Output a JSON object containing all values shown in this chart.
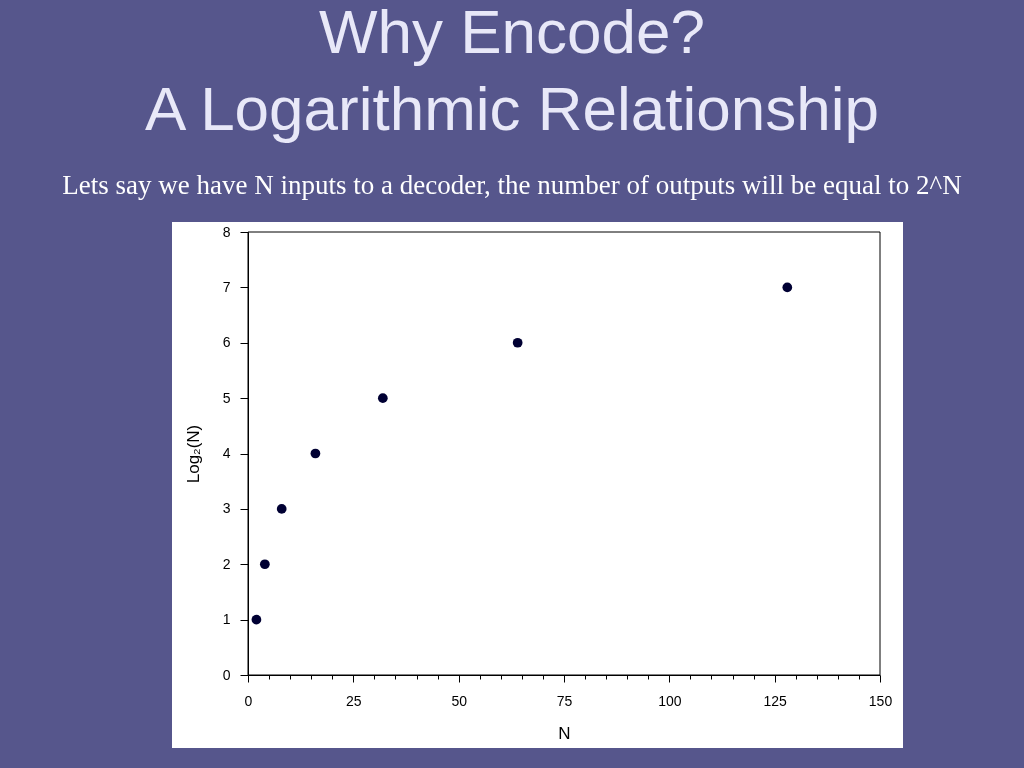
{
  "chart_data": {
    "type": "scatter",
    "title": "Why Encode?\nA Logarithmic Relationship",
    "subtitle": "Lets say we have N inputs to a decoder, the number of outputs will be equal to 2^N",
    "xlabel": "N",
    "ylabel": "Log₂(N)",
    "x": [
      2,
      4,
      8,
      16,
      32,
      64,
      128
    ],
    "series": [
      {
        "color": "#000033",
        "values": [
          1,
          2,
          3,
          4,
          5,
          6,
          7
        ]
      }
    ],
    "xlim": [
      0,
      150
    ],
    "ylim": [
      0,
      8
    ],
    "xticks": [
      0,
      {
        "value": 5,
        "label": null
      },
      {
        "value": 10,
        "label": null
      },
      {
        "value": 15,
        "label": null
      },
      {
        "value": 20,
        "label": null
      },
      25,
      {
        "value": 30,
        "label": null
      },
      {
        "value": 35,
        "label": null
      },
      {
        "value": 40,
        "label": null
      },
      {
        "value": 45,
        "label": null
      },
      50,
      {
        "value": 55,
        "label": null
      },
      {
        "value": 60,
        "label": null
      },
      {
        "value": 65,
        "label": null
      },
      {
        "value": 70,
        "label": null
      },
      75,
      {
        "value": 80,
        "label": null
      },
      {
        "value": 85,
        "label": null
      },
      {
        "value": 90,
        "label": null
      },
      {
        "value": 95,
        "label": null
      },
      100,
      {
        "value": 105,
        "label": null
      },
      {
        "value": 110,
        "label": null
      },
      {
        "value": 115,
        "label": null
      },
      {
        "value": 120,
        "label": null
      },
      125,
      {
        "value": 130,
        "label": null
      },
      {
        "value": 135,
        "label": null
      },
      {
        "value": 140,
        "label": null
      },
      {
        "value": 145,
        "label": null
      },
      150
    ],
    "yticks": [
      0,
      1,
      2,
      3,
      4,
      5,
      6,
      7,
      8
    ],
    "grid": false,
    "marker": "circle"
  }
}
